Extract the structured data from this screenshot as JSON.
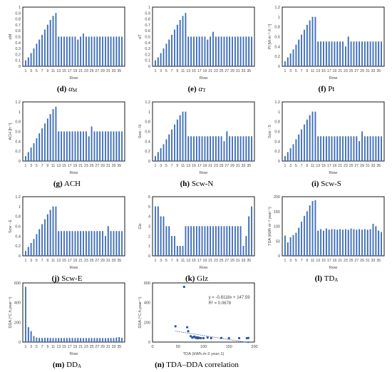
{
  "chart_data": [
    {
      "id": "d",
      "type": "bar",
      "caption_letter": "(d)",
      "caption_name": "α",
      "caption_sub": "M",
      "ylabel": "αM",
      "xlabel": "Row",
      "ylim": [
        0,
        1
      ],
      "yticks": [
        0,
        0.1,
        0.2,
        0.3,
        0.4,
        0.5,
        0.6,
        0.7,
        0.8,
        0.9,
        1
      ],
      "xticks": [
        "1",
        "3",
        "5",
        "7",
        "9",
        "11",
        "13",
        "15",
        "17",
        "19",
        "21",
        "23",
        "25",
        "27",
        "29",
        "31",
        "33",
        "35"
      ],
      "values": [
        0.1,
        0.15,
        0.22,
        0.3,
        0.38,
        0.45,
        0.53,
        0.62,
        0.7,
        0.78,
        0.85,
        0.9,
        0.5,
        0.5,
        0.5,
        0.5,
        0.5,
        0.5,
        0.5,
        0.45,
        0.5,
        0.55,
        0.5,
        0.5,
        0.5,
        0.5,
        0.5,
        0.5,
        0.5,
        0.5,
        0.5,
        0.5,
        0.5,
        0.5,
        0.5,
        0.5
      ]
    },
    {
      "id": "e",
      "type": "bar",
      "caption_letter": "(e)",
      "caption_name": "α",
      "caption_sub": "T",
      "ylabel": "αT",
      "xlabel": "Row",
      "ylim": [
        0,
        1
      ],
      "yticks": [
        0,
        0.1,
        0.2,
        0.3,
        0.4,
        0.5,
        0.6,
        0.7,
        0.8,
        0.9,
        1
      ],
      "xticks": [
        "1",
        "3",
        "5",
        "7",
        "9",
        "11",
        "13",
        "15",
        "17",
        "19",
        "21",
        "23",
        "25",
        "27",
        "29",
        "31",
        "33",
        "35"
      ],
      "values": [
        0.1,
        0.15,
        0.22,
        0.3,
        0.38,
        0.45,
        0.53,
        0.62,
        0.7,
        0.78,
        0.85,
        0.9,
        0.5,
        0.5,
        0.5,
        0.5,
        0.5,
        0.5,
        0.5,
        0.45,
        0.5,
        0.58,
        0.5,
        0.5,
        0.5,
        0.5,
        0.5,
        0.5,
        0.5,
        0.5,
        0.5,
        0.5,
        0.5,
        0.5,
        0.5,
        0.5
      ]
    },
    {
      "id": "f",
      "type": "bar",
      "caption_letter": "(f)",
      "caption_name": "Pt",
      "caption_sub": "",
      "ylabel": "Pt [W.m⁻¹.K⁻¹]",
      "xlabel": "Row",
      "ylim": [
        0,
        1.2
      ],
      "yticks": [
        0,
        0.2,
        0.4,
        0.6,
        0.8,
        1,
        1.2
      ],
      "xticks": [
        "1",
        "3",
        "5",
        "7",
        "9",
        "11",
        "13",
        "15",
        "17",
        "19",
        "21",
        "23",
        "25",
        "27",
        "29",
        "31",
        "33",
        "35"
      ],
      "values": [
        0.1,
        0.18,
        0.26,
        0.34,
        0.44,
        0.54,
        0.64,
        0.74,
        0.84,
        0.93,
        1.0,
        1.0,
        0.5,
        0.5,
        0.5,
        0.5,
        0.5,
        0.5,
        0.5,
        0.5,
        0.5,
        0.5,
        0.4,
        0.6,
        0.5,
        0.5,
        0.5,
        0.5,
        0.5,
        0.5,
        0.5,
        0.5,
        0.5,
        0.5,
        0.5,
        0.5
      ]
    },
    {
      "id": "g",
      "type": "bar",
      "caption_letter": "(g)",
      "caption_name": "ACH",
      "caption_sub": "",
      "ylabel": "ACH [h⁻¹]",
      "xlabel": "Row",
      "ylim": [
        0,
        1.2
      ],
      "yticks": [
        0,
        0.2,
        0.4,
        0.6,
        0.8,
        1,
        1.2
      ],
      "xticks": [
        "1",
        "3",
        "5",
        "7",
        "9",
        "11",
        "13",
        "15",
        "17",
        "19",
        "21",
        "23",
        "25",
        "27",
        "29",
        "31",
        "33",
        "35"
      ],
      "values": [
        0.1,
        0.18,
        0.27,
        0.36,
        0.46,
        0.56,
        0.66,
        0.76,
        0.86,
        0.95,
        1.05,
        1.1,
        0.6,
        0.6,
        0.6,
        0.6,
        0.6,
        0.6,
        0.6,
        0.6,
        0.6,
        0.6,
        0.6,
        0.5,
        0.7,
        0.6,
        0.6,
        0.6,
        0.6,
        0.6,
        0.6,
        0.6,
        0.6,
        0.6,
        0.6,
        0.6
      ]
    },
    {
      "id": "h",
      "type": "bar",
      "caption_letter": "(h)",
      "caption_name": "Scw-N",
      "caption_sub": "",
      "ylabel": "Scw - N",
      "xlabel": "Row",
      "ylim": [
        0,
        1.2
      ],
      "yticks": [
        0,
        0.2,
        0.4,
        0.6,
        0.8,
        1,
        1.2
      ],
      "xticks": [
        "1",
        "3",
        "5",
        "7",
        "9",
        "11",
        "13",
        "15",
        "17",
        "19",
        "21",
        "23",
        "25",
        "27",
        "29",
        "31",
        "33",
        "35"
      ],
      "values": [
        0.1,
        0.18,
        0.26,
        0.34,
        0.44,
        0.54,
        0.64,
        0.74,
        0.84,
        0.93,
        1.0,
        1.0,
        0.5,
        0.5,
        0.5,
        0.5,
        0.5,
        0.5,
        0.5,
        0.5,
        0.5,
        0.5,
        0.5,
        0.5,
        0.5,
        0.4,
        0.6,
        0.5,
        0.5,
        0.5,
        0.5,
        0.5,
        0.5,
        0.5,
        0.5,
        0.5
      ]
    },
    {
      "id": "i",
      "type": "bar",
      "caption_letter": "(i)",
      "caption_name": "Scw-S",
      "caption_sub": "",
      "ylabel": "Scw - S",
      "xlabel": "Row",
      "ylim": [
        0,
        1.2
      ],
      "yticks": [
        0,
        0.2,
        0.4,
        0.6,
        0.8,
        1,
        1.2
      ],
      "xticks": [
        "1",
        "3",
        "5",
        "7",
        "9",
        "11",
        "13",
        "15",
        "17",
        "19",
        "21",
        "23",
        "25",
        "27",
        "29",
        "31",
        "33",
        "35"
      ],
      "values": [
        0.1,
        0.18,
        0.26,
        0.34,
        0.44,
        0.54,
        0.64,
        0.74,
        0.84,
        0.93,
        1.0,
        1.0,
        0.5,
        0.5,
        0.5,
        0.5,
        0.5,
        0.5,
        0.5,
        0.5,
        0.5,
        0.5,
        0.5,
        0.5,
        0.5,
        0.5,
        0.5,
        0.4,
        0.6,
        0.5,
        0.5,
        0.5,
        0.5,
        0.5,
        0.5,
        0.5
      ]
    },
    {
      "id": "j",
      "type": "bar",
      "caption_letter": "(j)",
      "caption_name": "Scw-E",
      "caption_sub": "",
      "ylabel": "Scw - E",
      "xlabel": "Row",
      "ylim": [
        0,
        1.2
      ],
      "yticks": [
        0,
        0.2,
        0.4,
        0.6,
        0.8,
        1,
        1.2
      ],
      "xticks": [
        "1",
        "3",
        "5",
        "7",
        "9",
        "11",
        "13",
        "15",
        "17",
        "19",
        "21",
        "23",
        "25",
        "27",
        "29",
        "31",
        "33",
        "35"
      ],
      "values": [
        0.1,
        0.18,
        0.26,
        0.34,
        0.44,
        0.54,
        0.64,
        0.74,
        0.84,
        0.93,
        1.0,
        1.0,
        0.5,
        0.5,
        0.5,
        0.5,
        0.5,
        0.5,
        0.5,
        0.5,
        0.5,
        0.5,
        0.5,
        0.5,
        0.5,
        0.5,
        0.5,
        0.5,
        0.5,
        0.4,
        0.6,
        0.5,
        0.5,
        0.5,
        0.5,
        0.5
      ]
    },
    {
      "id": "k",
      "type": "bar",
      "caption_letter": "(k)",
      "caption_name": "Glz",
      "caption_sub": "",
      "ylabel": "Glz",
      "xlabel": "Row",
      "ylim": [
        0,
        6
      ],
      "yticks": [
        0,
        1,
        2,
        3,
        4,
        5,
        6
      ],
      "xticks": [
        "1",
        "3",
        "5",
        "7",
        "9",
        "11",
        "13",
        "15",
        "17",
        "19",
        "21",
        "23",
        "25",
        "27",
        "29",
        "31",
        "33",
        "35"
      ],
      "values": [
        5,
        5,
        4,
        4,
        3,
        3,
        2,
        2,
        1,
        1,
        1,
        3,
        3,
        3,
        3,
        3,
        3,
        3,
        3,
        3,
        3,
        3,
        3,
        3,
        3,
        3,
        3,
        3,
        3,
        3,
        3,
        3,
        1,
        2,
        4,
        5
      ]
    },
    {
      "id": "l",
      "type": "bar",
      "caption_letter": "(l)",
      "caption_name": "TD",
      "caption_sub": "A",
      "ylabel": "TDA (kWh.m⁻².year⁻¹)",
      "xlabel": "Row",
      "ylim": [
        0,
        200
      ],
      "yticks": [
        0,
        50,
        100,
        150,
        200
      ],
      "xticks": [
        "1",
        "3",
        "5",
        "7",
        "9",
        "11",
        "13",
        "15",
        "17",
        "19",
        "21",
        "23",
        "25",
        "27",
        "29",
        "31",
        "33",
        "35"
      ],
      "values": [
        68,
        45,
        62,
        70,
        78,
        95,
        115,
        135,
        150,
        170,
        185,
        188,
        85,
        90,
        85,
        92,
        88,
        90,
        90,
        88,
        90,
        88,
        90,
        88,
        92,
        90,
        88,
        90,
        88,
        90,
        88,
        90,
        108,
        100,
        85,
        80
      ]
    },
    {
      "id": "m",
      "type": "bar",
      "caption_letter": "(m)",
      "caption_name": "DD",
      "caption_sub": "A",
      "ylabel": "DDA (°C.h.year⁻¹)",
      "xlabel": "Row",
      "ylim": [
        0,
        600
      ],
      "yticks": [
        0,
        200,
        400,
        600
      ],
      "xticks": [
        "1",
        "3",
        "5",
        "7",
        "9",
        "11",
        "13",
        "15",
        "17",
        "19",
        "21",
        "23",
        "25",
        "27",
        "29",
        "31",
        "33",
        "35"
      ],
      "values": [
        560,
        150,
        110,
        60,
        45,
        42,
        40,
        42,
        42,
        40,
        40,
        40,
        40,
        40,
        40,
        40,
        40,
        40,
        40,
        40,
        40,
        40,
        40,
        40,
        40,
        40,
        40,
        40,
        40,
        40,
        40,
        40,
        40,
        45,
        50,
        42
      ]
    },
    {
      "id": "n",
      "type": "scatter",
      "caption_letter": "(n)",
      "caption_name": "TDA–DDA correlation",
      "caption_sub": "",
      "ylabel": "DDA (°C.h.year⁻¹)",
      "xlabel": "TDA (kWh.m-2.year-1)",
      "xlim": [
        0,
        200
      ],
      "ylim": [
        0,
        600
      ],
      "xticks": [
        0,
        50,
        100,
        150,
        200
      ],
      "yticks": [
        0,
        200,
        400,
        600
      ],
      "equation": "y = -0.8118x + 147.59",
      "r2": "R² = 0.0678",
      "trend": {
        "slope": -0.8118,
        "intercept": 147.59,
        "x_range": [
          45,
          190
        ]
      },
      "points": [
        [
          45,
          160
        ],
        [
          62,
          560
        ],
        [
          68,
          150
        ],
        [
          70,
          110
        ],
        [
          75,
          60
        ],
        [
          78,
          45
        ],
        [
          85,
          42
        ],
        [
          88,
          40
        ],
        [
          90,
          40
        ],
        [
          92,
          42
        ],
        [
          95,
          40
        ],
        [
          100,
          40
        ],
        [
          108,
          45
        ],
        [
          115,
          40
        ],
        [
          135,
          42
        ],
        [
          150,
          40
        ],
        [
          170,
          40
        ],
        [
          185,
          40
        ],
        [
          188,
          42
        ],
        [
          80,
          50
        ],
        [
          82,
          55
        ],
        [
          86,
          48
        ],
        [
          89,
          46
        ],
        [
          91,
          44
        ]
      ]
    }
  ]
}
